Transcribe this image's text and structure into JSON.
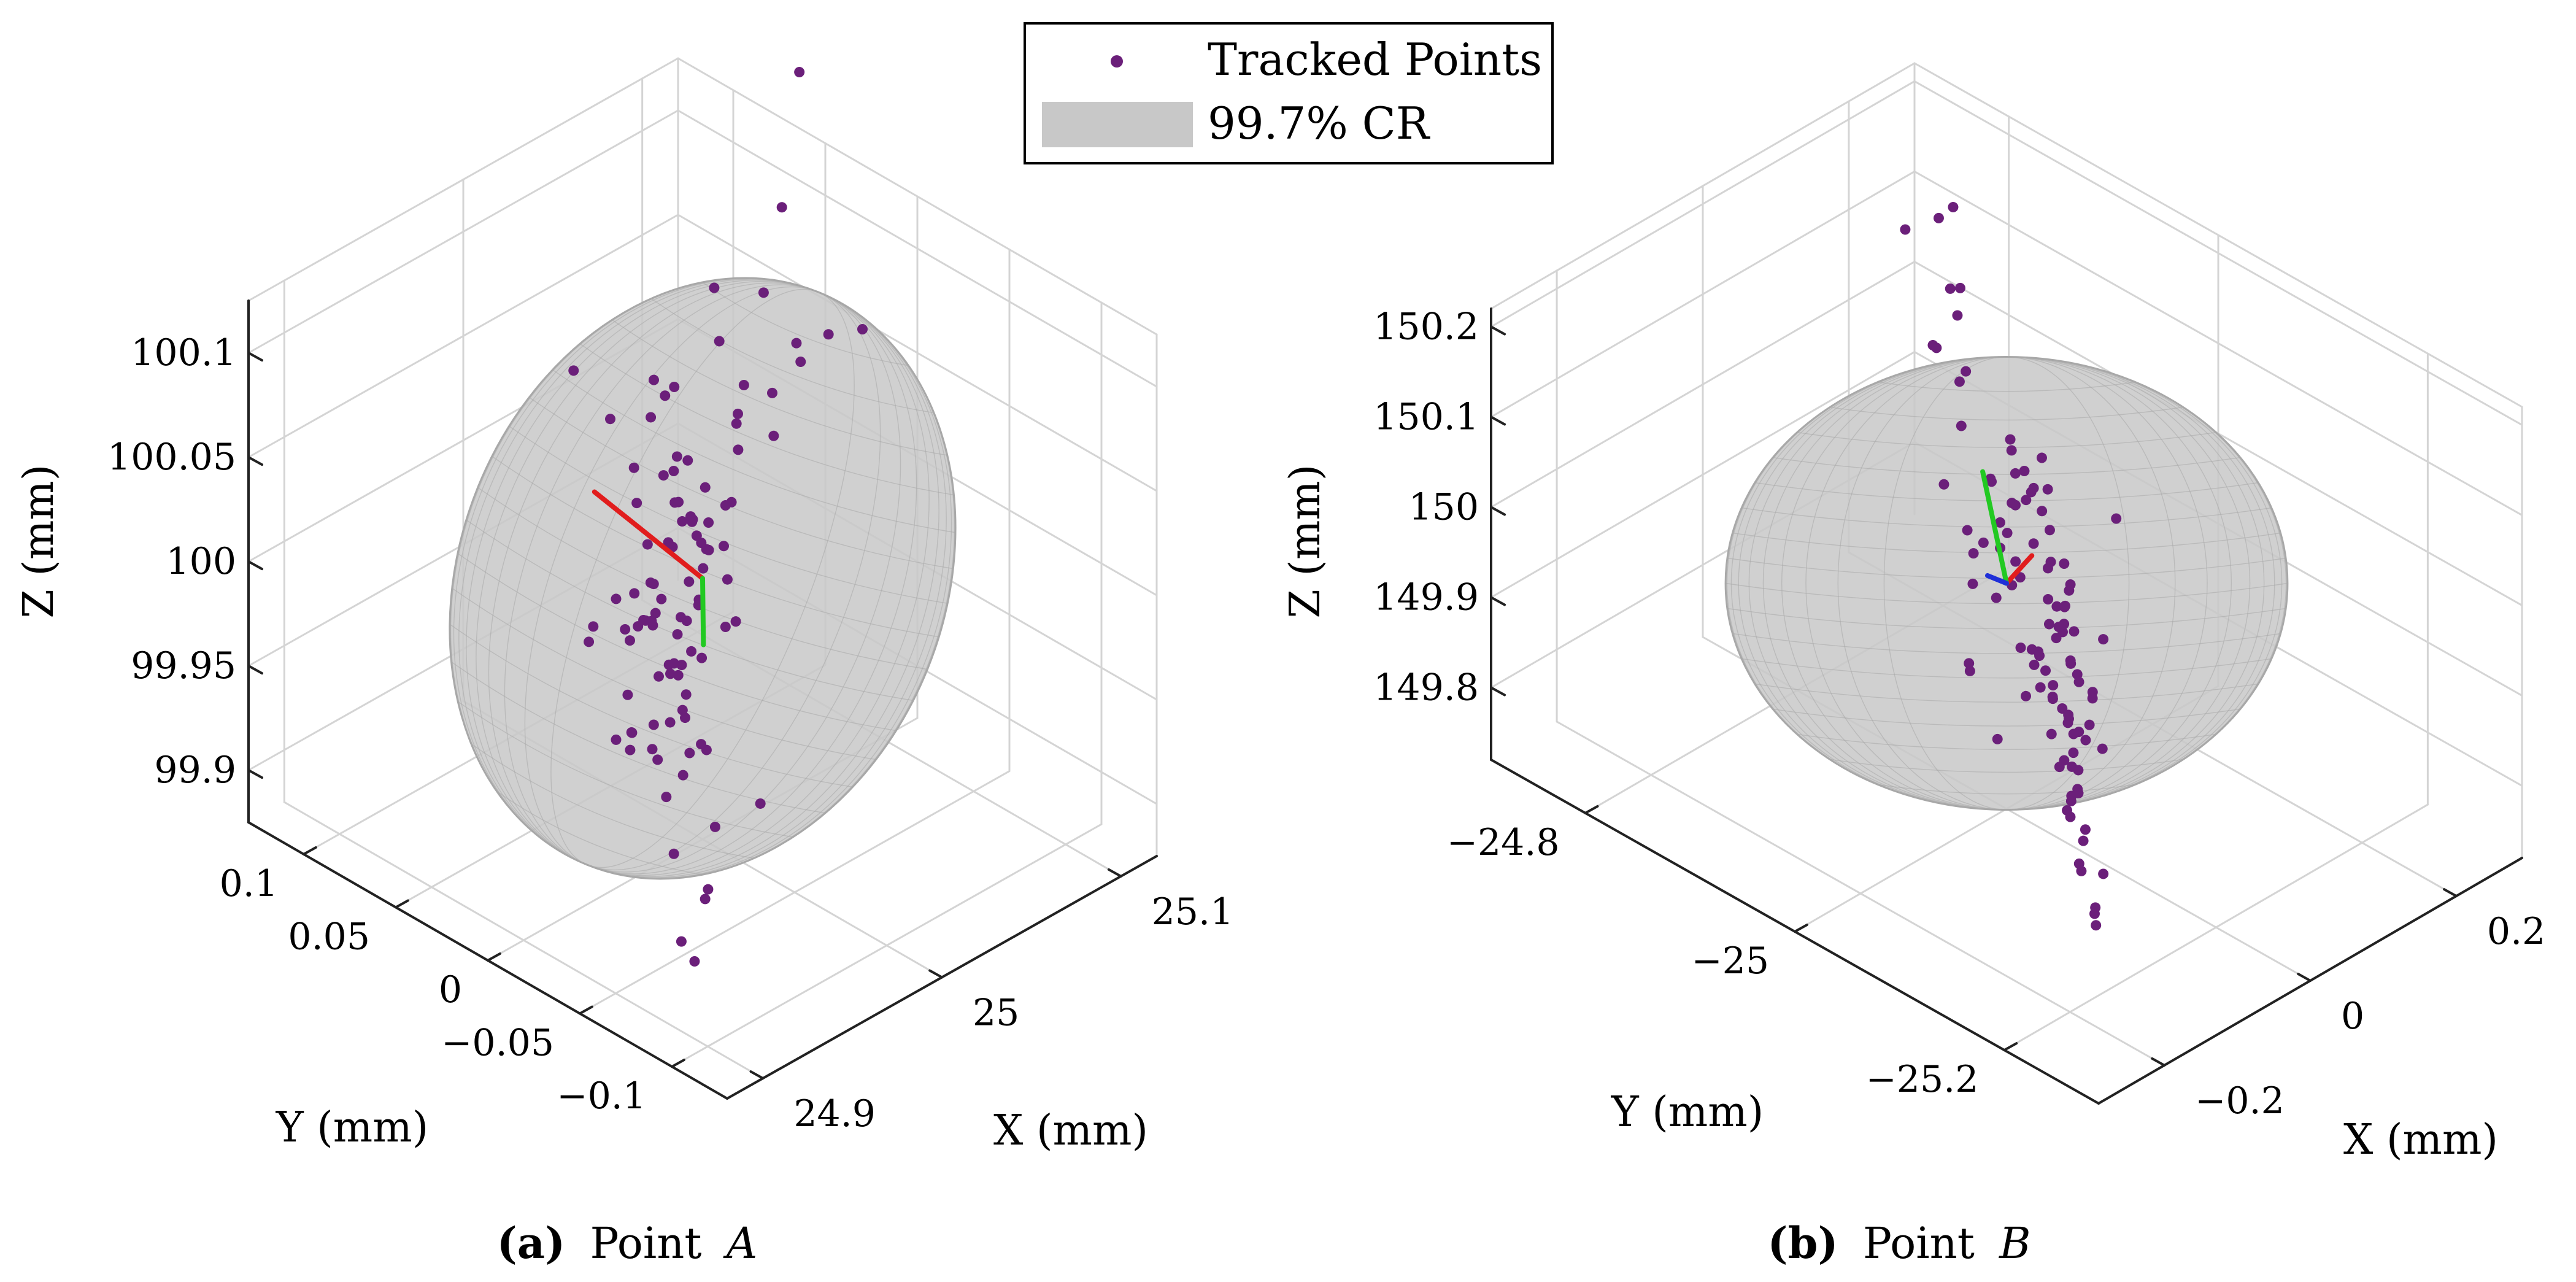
{
  "legend": {
    "items": [
      {
        "label": "Tracked Points",
        "marker": "dot"
      },
      {
        "label": "99.7% CR",
        "marker": "patch"
      }
    ]
  },
  "colors": {
    "points": "#6b1f7a",
    "ellipsoid_fill": "#c8c8c8",
    "ellipsoid_mesh": "#a8a8a8",
    "grid": "#d4d4d4",
    "axis": "#222222",
    "axis_x": "#e11d1d",
    "axis_y": "#22c922",
    "axis_z": "#1f2fd8"
  },
  "chart_data": [
    {
      "type": "scatter",
      "panel": "a",
      "caption": {
        "tag": "(a)",
        "text": "Point",
        "var": "A"
      },
      "xlabel": "X (mm)",
      "ylabel": "Y (mm)",
      "zlabel": "Z (mm)",
      "xlim": [
        24.88,
        25.12
      ],
      "ylim": [
        -0.13,
        0.13
      ],
      "zlim": [
        99.875,
        100.125
      ],
      "xticks": [
        24.9,
        25,
        25.1
      ],
      "xticklabels": [
        "24.9",
        "25",
        "25.1"
      ],
      "yticks": [
        -0.1,
        -0.05,
        0,
        0.05,
        0.1
      ],
      "yticklabels": [
        "−0.1",
        "−0.05",
        "0",
        "0.05",
        "0.1"
      ],
      "zticks": [
        99.9,
        99.95,
        100,
        100.05,
        100.1
      ],
      "zticklabels": [
        "99.9",
        "99.95",
        "100",
        "100.05",
        "100.1"
      ],
      "center": [
        25.0,
        0.0,
        100.0
      ],
      "ellipsoid": {
        "semi_axes": [
          0.105,
          0.09,
          0.125
        ],
        "view_radii": [
          0.118,
          0.148
        ],
        "tilt_deg": 22
      },
      "principal_axes": [
        {
          "name": "axis 1",
          "color": "red",
          "dir": [
            -0.42,
            0.43,
            0.56
          ],
          "length": 0.12
        },
        {
          "name": "axis 2",
          "color": "green",
          "dir": [
            -0.47,
            -0.43,
            -0.16
          ],
          "length": 0.09
        }
      ],
      "points": [
        [
          25.025,
          0.018,
          100.118
        ],
        [
          25.034,
          0.024,
          100.085
        ],
        [
          25.018,
          0.044,
          100.064
        ],
        [
          25.006,
          0.056,
          100.045
        ],
        [
          25.042,
          0.003,
          100.067
        ],
        [
          25.058,
          -0.012,
          100.095
        ],
        [
          25.022,
          0.003,
          100.062
        ],
        [
          24.972,
          -0.006,
          100.066
        ],
        [
          24.967,
          -0.021,
          100.054
        ],
        [
          24.968,
          -0.016,
          100.06
        ],
        [
          24.956,
          -0.007,
          100.061
        ],
        [
          24.985,
          -0.016,
          100.059
        ],
        [
          24.975,
          -0.04,
          100.069
        ],
        [
          25.003,
          0.073,
          100.061
        ],
        [
          24.976,
          -0.018,
          100.049
        ],
        [
          25.005,
          0.033,
          100.058
        ],
        [
          25.05,
          0.01,
          100.039
        ],
        [
          25.025,
          0.005,
          100.047
        ],
        [
          24.991,
          -0.003,
          100.033
        ],
        [
          24.982,
          -0.011,
          100.044
        ],
        [
          25.005,
          0.018,
          100.025
        ],
        [
          24.984,
          -0.028,
          100.057
        ],
        [
          24.987,
          -0.016,
          100.028
        ],
        [
          24.982,
          -0.029,
          100.039
        ],
        [
          24.999,
          -0.003,
          100.016
        ],
        [
          25.025,
          0.04,
          100.019
        ],
        [
          25.014,
          0.021,
          99.981
        ],
        [
          25.008,
          0.011,
          100.011
        ],
        [
          24.983,
          -0.03,
          100.023
        ],
        [
          24.965,
          -0.032,
          100.023
        ],
        [
          24.954,
          -0.045,
          100.05
        ],
        [
          24.948,
          -0.063,
          100.034
        ],
        [
          24.927,
          -0.089,
          100.06
        ],
        [
          24.946,
          -0.013,
          100.003
        ],
        [
          24.972,
          0.001,
          100.011
        ],
        [
          24.969,
          0.002,
          99.994
        ],
        [
          24.996,
          0.026,
          100.005
        ],
        [
          25.011,
          0.027,
          99.996
        ],
        [
          24.985,
          0.011,
          99.985
        ],
        [
          24.965,
          -0.007,
          99.998
        ],
        [
          24.958,
          -0.017,
          99.982
        ],
        [
          24.938,
          -0.042,
          100.01
        ],
        [
          24.986,
          -0.005,
          99.989
        ],
        [
          24.988,
          0.002,
          99.978
        ],
        [
          24.982,
          -0.002,
          99.969
        ],
        [
          24.982,
          0.0,
          99.963
        ],
        [
          24.962,
          -0.028,
          99.977
        ],
        [
          24.951,
          -0.03,
          99.97
        ],
        [
          24.94,
          -0.031,
          99.963
        ],
        [
          25.0,
          0.031,
          99.964
        ],
        [
          24.982,
          -0.008,
          99.946
        ],
        [
          24.966,
          -0.026,
          99.946
        ],
        [
          24.959,
          -0.042,
          99.959
        ],
        [
          24.964,
          0.012,
          99.934
        ],
        [
          24.977,
          0.016,
          99.929
        ],
        [
          24.984,
          0.011,
          99.932
        ],
        [
          25.014,
          0.036,
          99.965
        ],
        [
          25.03,
          0.041,
          99.946
        ],
        [
          25.005,
          0.011,
          99.957
        ],
        [
          25.017,
          0.017,
          99.945
        ],
        [
          25.009,
          0.022,
          99.938
        ],
        [
          25.013,
          0.024,
          99.94
        ],
        [
          25.045,
          0.046,
          99.942
        ],
        [
          25.025,
          0.052,
          99.941
        ],
        [
          25.059,
          0.076,
          99.95
        ],
        [
          25.062,
          0.061,
          99.956
        ],
        [
          25.046,
          0.082,
          99.989
        ],
        [
          25.075,
          0.081,
          99.979
        ],
        [
          25.087,
          0.105,
          99.992
        ],
        [
          25.092,
          0.067,
          100.014
        ],
        [
          25.099,
          0.043,
          100.034
        ],
        [
          25.109,
          0.055,
          100.032
        ],
        [
          25.106,
          0.06,
          100.096
        ],
        [
          25.103,
          0.067,
          100.053
        ],
        [
          25.114,
          0.024,
          100.052
        ],
        [
          25.066,
          0.045,
          100.024
        ],
        [
          25.051,
          0.065,
          100.034
        ],
        [
          25.032,
          0.045,
          100.02
        ],
        [
          25.029,
          0.025,
          100.0
        ],
        [
          25.003,
          0.04,
          99.971
        ],
        [
          24.993,
          0.055,
          99.945
        ],
        [
          25.014,
          0.073,
          99.933
        ],
        [
          25.036,
          0.082,
          99.931
        ],
        [
          25.04,
          0.074,
          99.92
        ],
        [
          25.04,
          0.081,
          99.915
        ],
        [
          25.057,
          0.082,
          99.928
        ],
        [
          24.95,
          -0.08,
          99.957
        ],
        [
          24.935,
          -0.07,
          99.948
        ],
        [
          24.929,
          -0.072,
          99.922
        ],
        [
          24.95,
          -0.05,
          99.896
        ],
        [
          24.95,
          -0.033,
          99.909
        ],
        [
          24.947,
          -0.04,
          99.872
        ],
        [
          24.941,
          -0.053,
          99.872
        ],
        [
          25.025,
          0.065,
          99.899
        ],
        [
          25.016,
          0.04,
          99.885
        ],
        [
          25.013,
          0.052,
          99.885
        ],
        [
          24.99,
          0.01,
          99.895
        ],
        [
          25.032,
          0.042,
          99.9
        ],
        [
          25.022,
          0.06,
          99.885
        ],
        [
          24.986,
          -0.003,
          99.914
        ],
        [
          24.993,
          -0.006,
          99.927
        ],
        [
          25.124,
          0.068,
          100.148
        ]
      ]
    },
    {
      "type": "scatter",
      "panel": "b",
      "caption": {
        "tag": "(b)",
        "text": "Point",
        "var": "B"
      },
      "xlabel": "X (mm)",
      "ylabel": "Y (mm)",
      "zlabel": "Z (mm)",
      "xlim": [
        -0.29,
        0.29
      ],
      "ylim": [
        -25.29,
        -24.71
      ],
      "zlim": [
        149.72,
        150.22
      ],
      "xticks": [
        -0.2,
        0,
        0.2
      ],
      "xticklabels": [
        "−0.2",
        "0",
        "0.2"
      ],
      "yticks": [
        -25.2,
        -25,
        -24.8
      ],
      "yticklabels": [
        "−25.2",
        "−25",
        "−24.8"
      ],
      "zticks": [
        149.8,
        149.9,
        150,
        150.1,
        150.2
      ],
      "zticklabels": [
        "149.8",
        "149.9",
        "150",
        "150.1",
        "150.2"
      ],
      "center": [
        0.0,
        -25.0,
        149.97
      ],
      "ellipsoid": {
        "semi_axes": [
          0.28,
          0.28,
          0.15
        ],
        "view_radii": [
          0.333,
          0.251
        ],
        "tilt_deg": 0
      },
      "principal_axes": [
        {
          "name": "axis 1",
          "color": "red",
          "dir": [
            0.47,
            0.2,
            -0.22
          ],
          "length": 0.14
        },
        {
          "name": "axis 2",
          "color": "green",
          "dir": [
            0.1,
            0.21,
            0.67
          ],
          "length": 0.12
        },
        {
          "name": "axis 3",
          "color": "blue",
          "dir": [
            -0.25,
            -0.04,
            0.24
          ],
          "length": 0.1
        }
      ],
      "points": [
        [
          -0.167,
          -25.17,
          150.106
        ],
        [
          0.011,
          -25.026,
          150.121
        ],
        [
          0.135,
          -24.859,
          150.111
        ],
        [
          0.189,
          -24.824,
          150.093
        ],
        [
          0.034,
          -25.081,
          150.079
        ],
        [
          -0.17,
          -25.186,
          150.071
        ],
        [
          -0.097,
          -25.123,
          150.07
        ],
        [
          -0.082,
          -25.112,
          150.037
        ],
        [
          -0.023,
          -25.077,
          150.03
        ],
        [
          0.037,
          -25.008,
          150.038
        ],
        [
          0.061,
          -24.981,
          150.03
        ],
        [
          0.027,
          -25.007,
          150.006
        ],
        [
          0.091,
          -24.945,
          150.013
        ],
        [
          0.087,
          -24.958,
          149.994
        ],
        [
          -0.036,
          -25.081,
          150.015
        ],
        [
          -0.041,
          -25.093,
          149.997
        ],
        [
          -0.083,
          -25.127,
          149.983
        ],
        [
          -0.132,
          -25.161,
          149.973
        ],
        [
          -0.147,
          -25.194,
          149.983
        ],
        [
          -0.138,
          -25.16,
          149.952
        ],
        [
          0.011,
          -25.052,
          149.991
        ],
        [
          0.043,
          -25.025,
          149.988
        ],
        [
          0.062,
          -24.999,
          149.964
        ],
        [
          0.108,
          -24.966,
          149.956
        ],
        [
          0.164,
          -24.925,
          149.948
        ],
        [
          -0.044,
          -25.092,
          149.962
        ],
        [
          -0.06,
          -25.124,
          149.959
        ],
        [
          -0.083,
          -25.137,
          149.942
        ],
        [
          -0.037,
          -25.063,
          149.932
        ],
        [
          0.043,
          -25.018,
          149.936
        ],
        [
          0.079,
          -24.958,
          149.912
        ],
        [
          0.092,
          -24.941,
          149.886
        ],
        [
          0.127,
          -24.951,
          149.895
        ],
        [
          0.14,
          -24.911,
          149.87
        ],
        [
          0.159,
          -24.883,
          149.886
        ],
        [
          0.203,
          -24.867,
          149.874
        ],
        [
          0.162,
          -24.881,
          149.855
        ],
        [
          0.216,
          -24.812,
          149.804
        ],
        [
          0.157,
          -24.859,
          149.837
        ],
        [
          0.185,
          -24.849,
          149.829
        ],
        [
          0.019,
          -25.011,
          149.895
        ],
        [
          -0.011,
          -25.04,
          149.886
        ],
        [
          0.012,
          -25.036,
          149.875
        ],
        [
          -0.025,
          -25.076,
          149.877
        ],
        [
          -0.038,
          -25.102,
          149.881
        ],
        [
          -0.064,
          -25.107,
          149.867
        ],
        [
          0.015,
          -25.049,
          149.845
        ],
        [
          0.039,
          -25.026,
          149.83
        ],
        [
          0.043,
          -25.029,
          149.823
        ],
        [
          -0.186,
          -25.222,
          149.881
        ],
        [
          -0.25,
          -25.259,
          149.898
        ],
        [
          -0.218,
          -25.236,
          149.861
        ],
        [
          -0.219,
          -25.238,
          149.85
        ],
        [
          -0.133,
          -25.162,
          149.828
        ],
        [
          0.018,
          -25.038,
          149.783
        ],
        [
          -0.019,
          -25.081,
          149.804
        ],
        [
          0.108,
          -24.955,
          149.814
        ],
        [
          0.081,
          -24.962,
          149.782
        ],
        [
          0.104,
          -24.941,
          149.811
        ],
        [
          0.078,
          -24.977,
          149.838
        ],
        [
          0.209,
          -24.839,
          149.882
        ],
        [
          0.249,
          -24.83,
          149.901
        ],
        [
          0.242,
          -24.817,
          149.849
        ],
        [
          0.258,
          -24.777,
          149.877
        ],
        [
          0.313,
          -24.737,
          149.874
        ],
        [
          0.323,
          -24.736,
          149.88
        ],
        [
          0.227,
          -24.782,
          149.83
        ],
        [
          0.171,
          -24.871,
          149.789
        ],
        [
          0.189,
          -24.836,
          149.773
        ],
        [
          0.112,
          -24.887,
          149.746
        ],
        [
          0.168,
          -24.847,
          149.702
        ],
        [
          0.088,
          -24.93,
          149.71
        ],
        [
          0.024,
          -25.041,
          149.734
        ],
        [
          -0.041,
          -25.1,
          149.736
        ],
        [
          -0.047,
          -25.108,
          149.79
        ],
        [
          0.209,
          -24.784,
          149.994
        ],
        [
          0.191,
          -24.8,
          150.01
        ],
        [
          -0.163,
          -25.14,
          150.048
        ],
        [
          -0.192,
          -25.178,
          150.049
        ],
        [
          -0.234,
          -25.206,
          150.048
        ],
        [
          -0.231,
          -25.216,
          150.024
        ],
        [
          -0.287,
          -25.262,
          150.041
        ],
        [
          -0.255,
          -25.251,
          149.969
        ],
        [
          -0.234,
          -25.224,
          149.968
        ],
        [
          -0.207,
          -25.206,
          149.961
        ],
        [
          -0.142,
          -25.16,
          150.056
        ],
        [
          -0.117,
          -25.129,
          150.049
        ],
        [
          0.103,
          -24.933,
          150.025
        ],
        [
          0.116,
          -24.945,
          149.985
        ],
        [
          0.142,
          -24.918,
          149.974
        ],
        [
          0.283,
          -24.738,
          150.07
        ],
        [
          0.283,
          -24.749,
          149.999
        ],
        [
          0.306,
          -24.69,
          150.015
        ],
        [
          -0.077,
          -25.146,
          150.04
        ],
        [
          -0.129,
          -25.172,
          150.016
        ],
        [
          -0.178,
          -25.188,
          150.01
        ],
        [
          0.363,
          -24.696,
          150.017
        ],
        [
          -0.006,
          -25.054,
          149.96
        ],
        [
          0.12,
          -24.917,
          149.915
        ],
        [
          0.145,
          -24.904,
          149.928
        ],
        [
          0.034,
          -25.017,
          149.92
        ],
        [
          0.064,
          -24.995,
          149.919
        ],
        [
          -0.094,
          -25.134,
          149.895
        ],
        [
          -0.114,
          -25.148,
          149.888
        ],
        [
          0.0,
          -25.044,
          149.873
        ]
      ]
    }
  ]
}
